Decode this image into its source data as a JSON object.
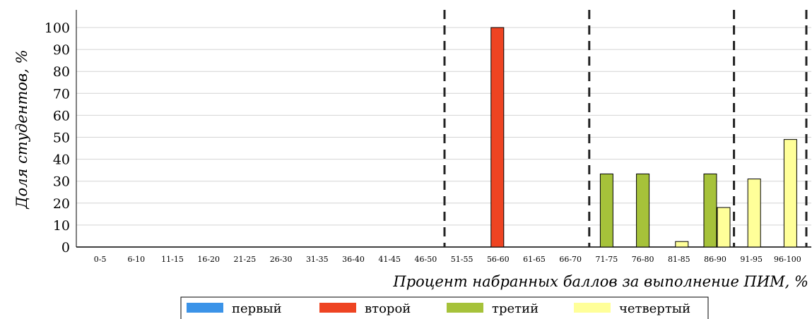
{
  "chart_data": {
    "type": "bar",
    "title": "",
    "xlabel": "Процент набранных баллов за выполнение ПИМ, %",
    "ylabel": "Доля студентов, %",
    "ylim": [
      0,
      100
    ],
    "yticks": [
      0,
      10,
      20,
      30,
      40,
      50,
      60,
      70,
      80,
      90,
      100
    ],
    "grid": true,
    "legend_position": "bottom",
    "categories": [
      "0-5",
      "6-10",
      "11-15",
      "16-20",
      "21-25",
      "26-30",
      "31-35",
      "36-40",
      "41-45",
      "46-50",
      "51-55",
      "56-60",
      "61-65",
      "66-70",
      "71-75",
      "76-80",
      "81-85",
      "86-90",
      "91-95",
      "96-100"
    ],
    "series": [
      {
        "name": "первый",
        "color": "#3b93e8",
        "values": [
          0,
          0,
          0,
          0,
          0,
          0,
          0,
          0,
          0,
          0,
          0,
          0,
          0,
          0,
          0,
          0,
          0,
          0,
          0,
          0
        ]
      },
      {
        "name": "второй",
        "color": "#ee4422",
        "values": [
          0,
          0,
          0,
          0,
          0,
          0,
          0,
          0,
          0,
          0,
          0,
          100,
          0,
          0,
          0,
          0,
          0,
          0,
          0,
          0
        ]
      },
      {
        "name": "третий",
        "color": "#a6c23a",
        "values": [
          0,
          0,
          0,
          0,
          0,
          0,
          0,
          0,
          0,
          0,
          0,
          0,
          0,
          0,
          33.3,
          33.3,
          0,
          33.3,
          0,
          0
        ]
      },
      {
        "name": "четвертый",
        "color": "#ffff99",
        "values": [
          0,
          0,
          0,
          0,
          0,
          0,
          0,
          0,
          0,
          0,
          0,
          0,
          0,
          0,
          0,
          0,
          2.5,
          18,
          31,
          49
        ]
      }
    ],
    "grade_boundaries": [
      "46-50",
      "66-70",
      "86-90",
      "96-100"
    ]
  }
}
